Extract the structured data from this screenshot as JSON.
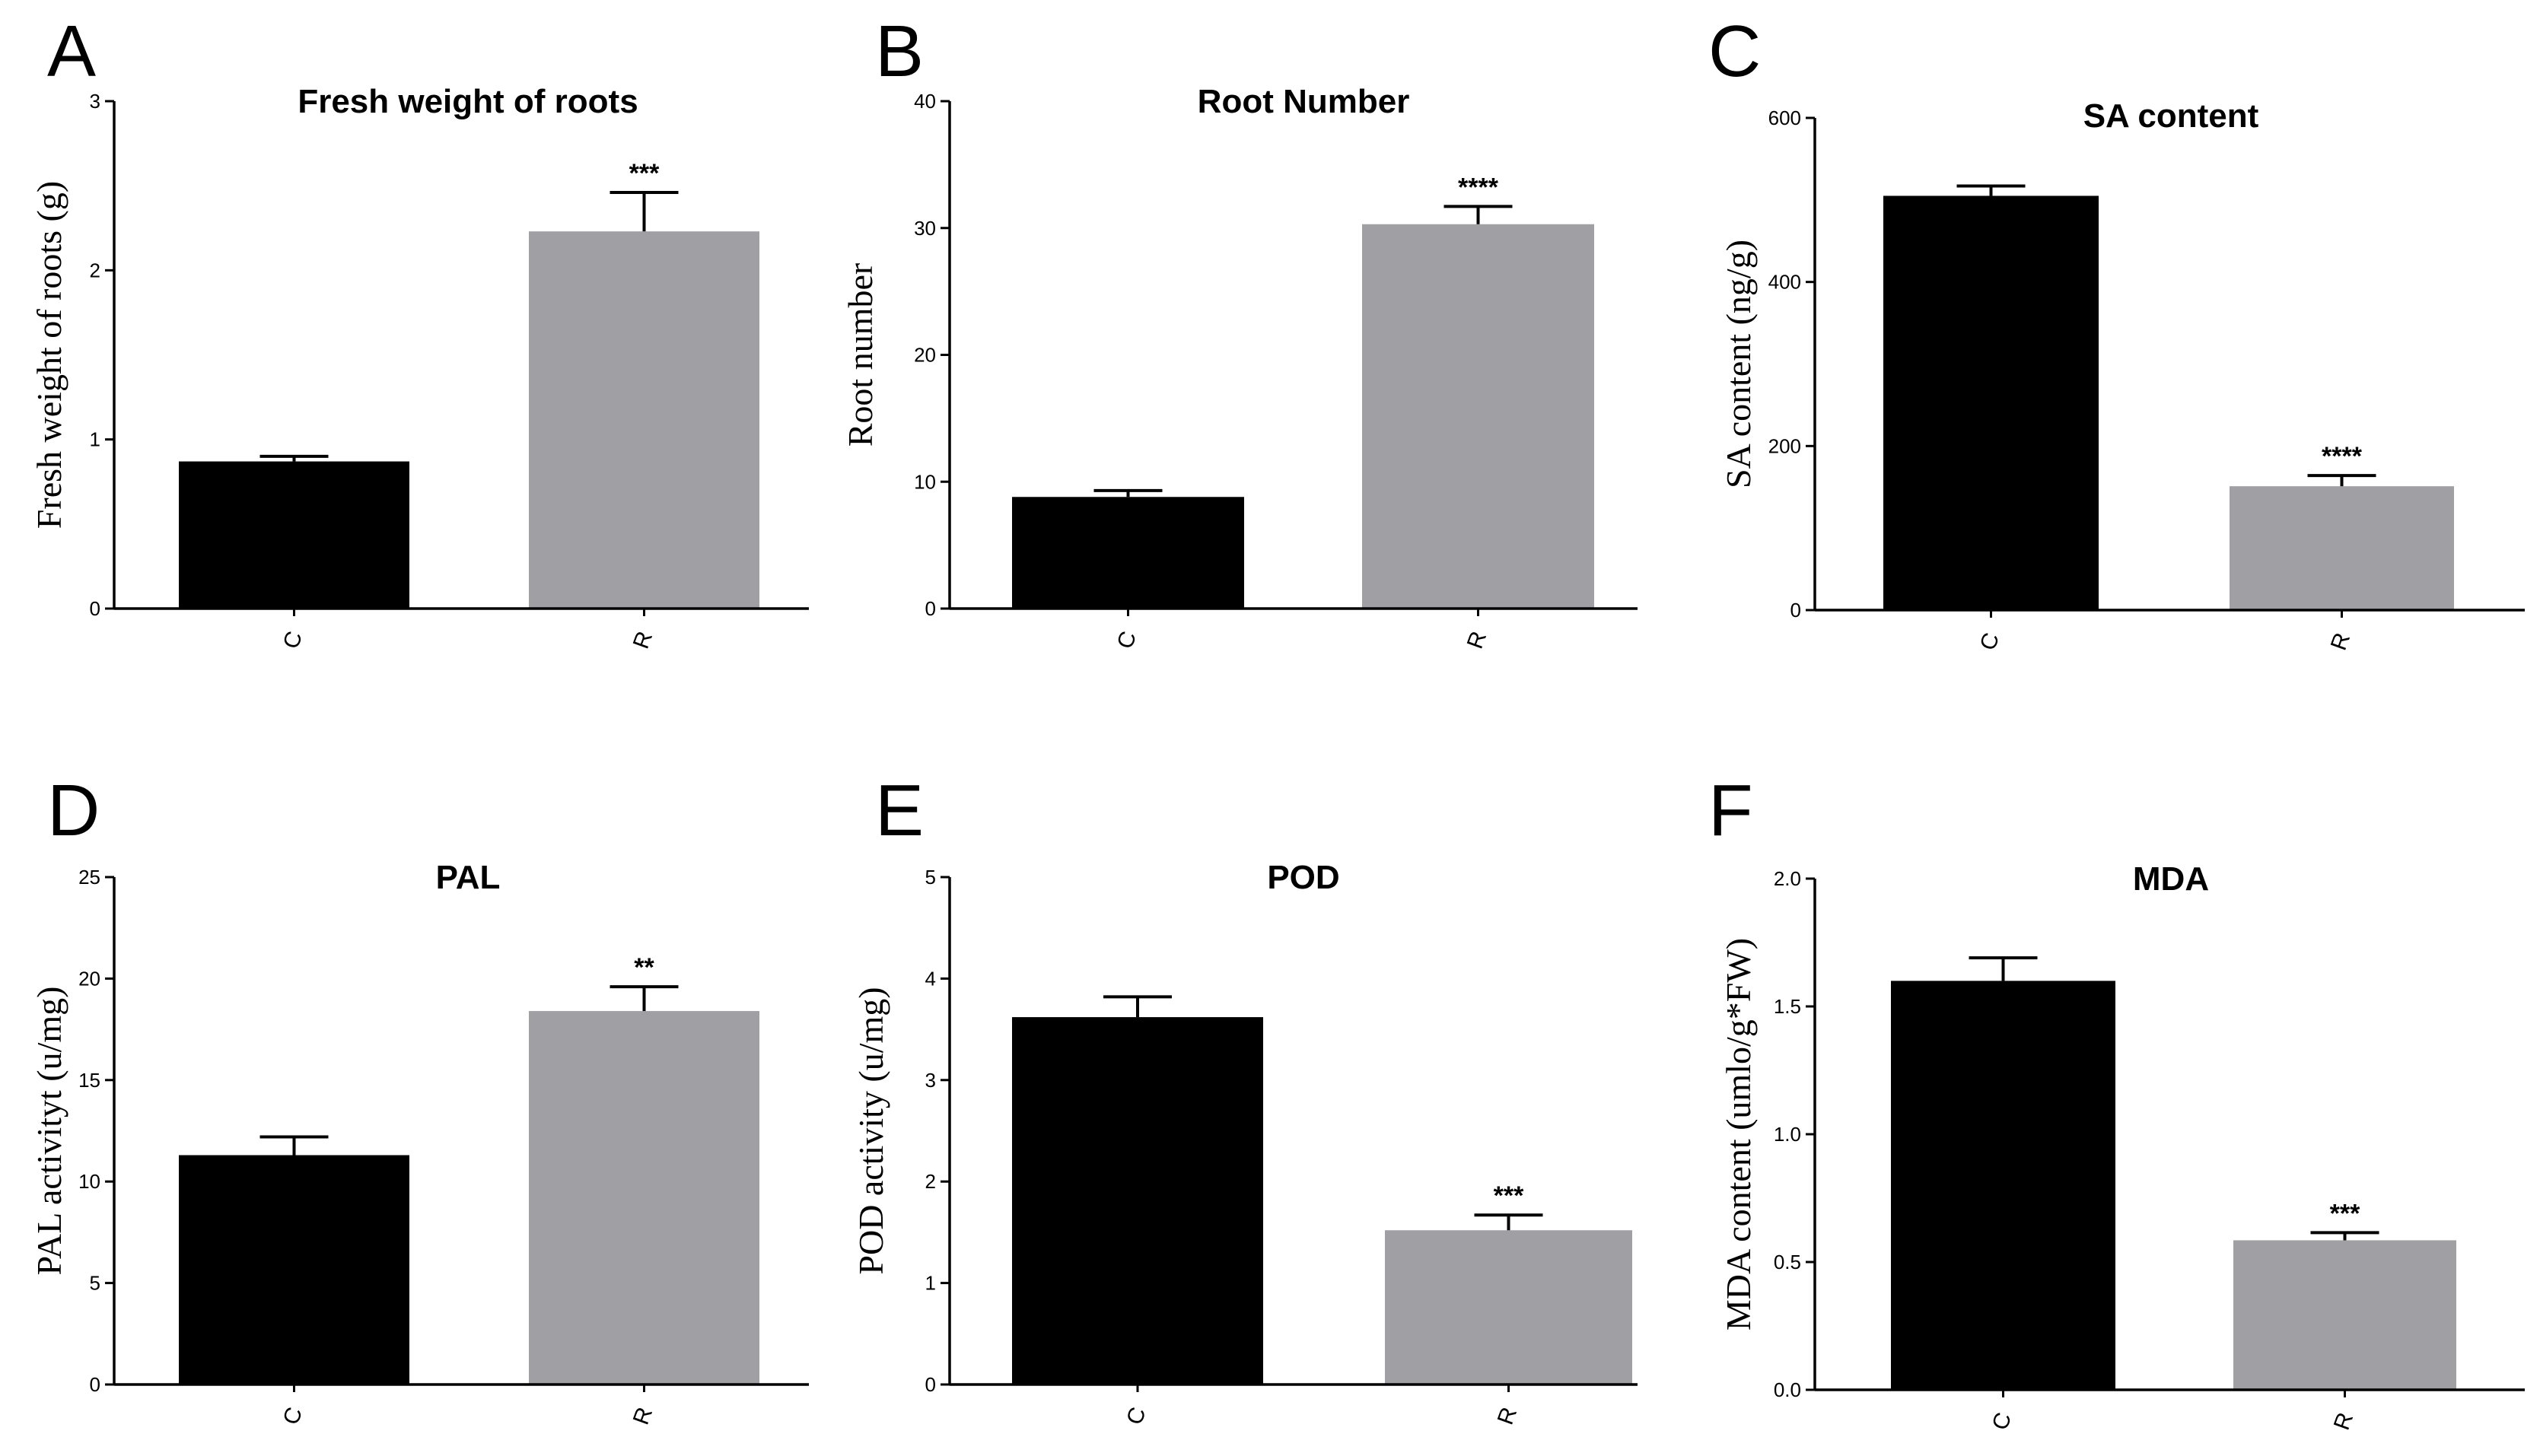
{
  "figure": {
    "background": "#ffffff"
  },
  "colors": {
    "C": "#000000",
    "R": "#a0a0a4",
    "axis": "#000000"
  },
  "chart_data": [
    {
      "panel": "A",
      "type": "bar",
      "title": "Fresh weight of roots",
      "xlabel": "",
      "ylabel": "Fresh weight of roots (g)",
      "ylim": [
        0,
        3
      ],
      "yticks": [
        0,
        1,
        2,
        3
      ],
      "ytick_labels": [
        "0",
        "1",
        "2",
        "3"
      ],
      "categories": [
        "C",
        "R"
      ],
      "values": [
        0.87,
        2.23
      ],
      "errors": [
        0.03,
        0.23
      ],
      "significance": [
        "",
        "***"
      ]
    },
    {
      "panel": "B",
      "type": "bar",
      "title": "Root Number",
      "xlabel": "",
      "ylabel": "Root number",
      "ylim": [
        0,
        40
      ],
      "yticks": [
        0,
        10,
        20,
        30,
        40
      ],
      "ytick_labels": [
        "0",
        "10",
        "20",
        "30",
        "40"
      ],
      "categories": [
        "C",
        "R"
      ],
      "values": [
        8.8,
        30.3
      ],
      "errors": [
        0.5,
        1.4
      ],
      "significance": [
        "",
        "****"
      ]
    },
    {
      "panel": "C",
      "type": "bar",
      "title": "SA content",
      "xlabel": "",
      "ylabel": "SA content (ng/g)",
      "ylim": [
        0,
        600
      ],
      "yticks": [
        0,
        200,
        400,
        600
      ],
      "ytick_labels": [
        "0",
        "200",
        "400",
        "600"
      ],
      "categories": [
        "C",
        "R"
      ],
      "values": [
        505,
        151
      ],
      "errors": [
        12,
        13
      ],
      "significance": [
        "",
        "****"
      ]
    },
    {
      "panel": "D",
      "type": "bar",
      "title": "PAL",
      "xlabel": "",
      "ylabel": "PAL activityt (u/mg)",
      "ylim": [
        0,
        25
      ],
      "yticks": [
        0,
        5,
        10,
        15,
        20,
        25
      ],
      "ytick_labels": [
        "0",
        "5",
        "10",
        "15",
        "20",
        "25"
      ],
      "categories": [
        "C",
        "R"
      ],
      "values": [
        11.3,
        18.4
      ],
      "errors": [
        0.9,
        1.2
      ],
      "significance": [
        "",
        "**"
      ]
    },
    {
      "panel": "E",
      "type": "bar",
      "title": "POD",
      "xlabel": "",
      "ylabel": "POD activity (u/mg)",
      "ylim": [
        0,
        5
      ],
      "yticks": [
        0,
        1,
        2,
        3,
        4,
        5
      ],
      "ytick_labels": [
        "0",
        "1",
        "2",
        "3",
        "4",
        "5"
      ],
      "categories": [
        "C",
        "R"
      ],
      "values": [
        3.62,
        1.52
      ],
      "errors": [
        0.2,
        0.15
      ],
      "significance": [
        "",
        "***"
      ]
    },
    {
      "panel": "F",
      "type": "bar",
      "title": "MDA",
      "xlabel": "",
      "ylabel": "MDA content (umlo/g*FW)",
      "ylim": [
        0,
        2
      ],
      "yticks": [
        0,
        0.5,
        1,
        1.5,
        2
      ],
      "ytick_labels": [
        "0.0",
        "0.5",
        "1.0",
        "1.5",
        "2.0"
      ],
      "categories": [
        "C",
        "R"
      ],
      "values": [
        1.6,
        0.585
      ],
      "errors": [
        0.09,
        0.03
      ],
      "significance": [
        "",
        "***"
      ]
    }
  ]
}
